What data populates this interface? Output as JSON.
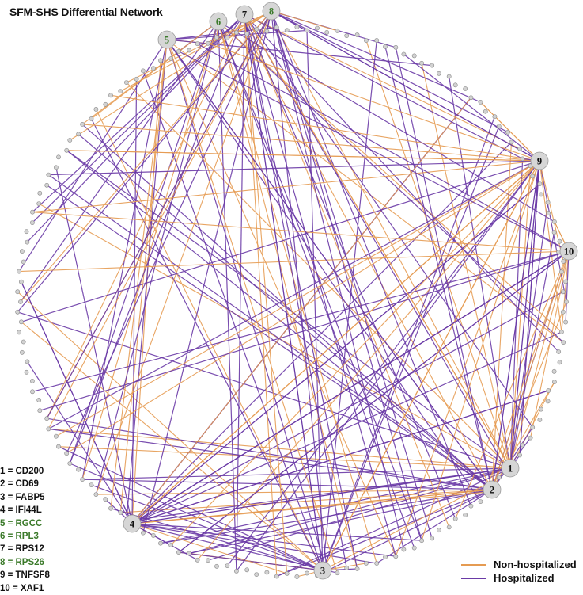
{
  "title": "SFM-SHS Differential Network",
  "colors": {
    "non_hospitalized": "#e59b52",
    "hospitalized": "#6a3aa6",
    "node_fill": "#d2d2d2",
    "node_stroke": "#8a8a8a",
    "hub_fill": "#d6d6d6",
    "label_black": "#111111",
    "label_green": "#3b7a2a"
  },
  "legend": [
    {
      "label": "Non-hospitalized",
      "color": "#e59b52"
    },
    {
      "label": "Hospitalized",
      "color": "#6a3aa6"
    }
  ],
  "hubs": [
    {
      "id": "1",
      "gene": "CD200",
      "color": "#111111"
    },
    {
      "id": "2",
      "gene": "CD69",
      "color": "#111111"
    },
    {
      "id": "3",
      "gene": "FABP5",
      "color": "#111111"
    },
    {
      "id": "4",
      "gene": "IFI44L",
      "color": "#111111"
    },
    {
      "id": "5",
      "gene": "RGCC",
      "color": "#3b7a2a"
    },
    {
      "id": "6",
      "gene": "RPL3",
      "color": "#3b7a2a"
    },
    {
      "id": "7",
      "gene": "RPS12",
      "color": "#111111"
    },
    {
      "id": "8",
      "gene": "RPS26",
      "color": "#3b7a2a"
    },
    {
      "id": "9",
      "gene": "TNFSF8",
      "color": "#111111"
    },
    {
      "id": "10",
      "gene": "XAF1",
      "color": "#111111"
    }
  ],
  "key": [
    {
      "text": "1 = CD200",
      "color": "#111111"
    },
    {
      "text": "2 = CD69",
      "color": "#111111"
    },
    {
      "text": "3 = FABP5",
      "color": "#111111"
    },
    {
      "text": "4 = IFI44L",
      "color": "#111111"
    },
    {
      "text": "5 = RGCC",
      "color": "#3b7a2a"
    },
    {
      "text": "6 = RPL3",
      "color": "#3b7a2a"
    },
    {
      "text": "7 = RPS12",
      "color": "#111111"
    },
    {
      "text": "8 = RPS26",
      "color": "#3b7a2a"
    },
    {
      "text": "9 = TNFSF8",
      "color": "#111111"
    },
    {
      "text": "10 = XAF1",
      "color": "#111111"
    }
  ]
}
